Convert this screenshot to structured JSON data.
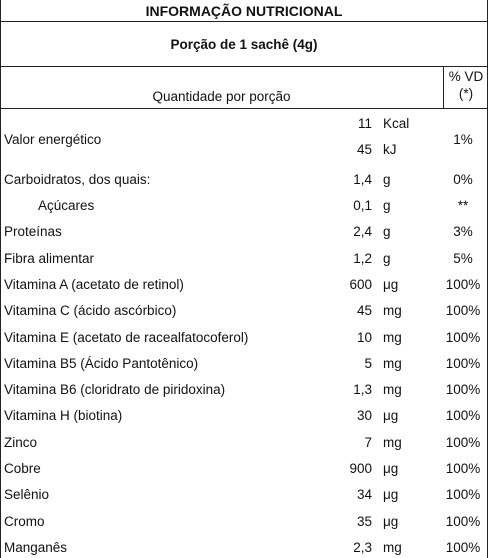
{
  "header": {
    "title": "INFORMAÇÃO NUTRICIONAL",
    "serving": "Porção de 1 sachê (4g)",
    "quantity_label": "Quantidade por porção",
    "vd_label": [
      "% VD",
      "(*)"
    ]
  },
  "rows": [
    {
      "name": "Valor energético",
      "amounts": [
        {
          "amount": "11",
          "unit": "Kcal"
        },
        {
          "amount": "45",
          "unit": "kJ"
        }
      ],
      "vd": "1%"
    },
    {
      "name": "Carboidratos, dos quais:",
      "amounts": [
        {
          "amount": "1,4",
          "unit": "g"
        }
      ],
      "vd": "0%"
    },
    {
      "name": "Açúcares",
      "indent": true,
      "amounts": [
        {
          "amount": "0,1",
          "unit": "g"
        }
      ],
      "vd": "**"
    },
    {
      "name": "Proteínas",
      "amounts": [
        {
          "amount": "2,4",
          "unit": "g"
        }
      ],
      "vd": "3%"
    },
    {
      "name": "Fibra alimentar",
      "amounts": [
        {
          "amount": "1,2",
          "unit": "g"
        }
      ],
      "vd": "5%"
    },
    {
      "name": "Vitamina A (acetato de retinol)",
      "amounts": [
        {
          "amount": "600",
          "unit": "μg"
        }
      ],
      "vd": "100%"
    },
    {
      "name": "Vitamina C (ácido ascórbico)",
      "amounts": [
        {
          "amount": "45",
          "unit": "mg"
        }
      ],
      "vd": "100%"
    },
    {
      "name": "Vitamina E (acetato de racealfatocoferol)",
      "amounts": [
        {
          "amount": "10",
          "unit": "mg"
        }
      ],
      "vd": "100%"
    },
    {
      "name": "Vitamina B5 (Ácido Pantotênico)",
      "amounts": [
        {
          "amount": "5",
          "unit": "mg"
        }
      ],
      "vd": "100%"
    },
    {
      "name": "Vitamina B6 (cloridrato de piridoxina)",
      "amounts": [
        {
          "amount": "1,3",
          "unit": "mg"
        }
      ],
      "vd": "100%"
    },
    {
      "name": "Vitamina H (biotina)",
      "amounts": [
        {
          "amount": "30",
          "unit": "μg"
        }
      ],
      "vd": "100%"
    },
    {
      "name": "Zinco",
      "amounts": [
        {
          "amount": "7",
          "unit": "mg"
        }
      ],
      "vd": "100%"
    },
    {
      "name": "Cobre",
      "amounts": [
        {
          "amount": "900",
          "unit": "μg"
        }
      ],
      "vd": "100%"
    },
    {
      "name": "Selênio",
      "amounts": [
        {
          "amount": "34",
          "unit": "μg"
        }
      ],
      "vd": "100%"
    },
    {
      "name": "Cromo",
      "amounts": [
        {
          "amount": "35",
          "unit": "μg"
        }
      ],
      "vd": "100%"
    },
    {
      "name": "Manganês",
      "amounts": [
        {
          "amount": "2,3",
          "unit": "mg"
        }
      ],
      "vd": "100%"
    }
  ]
}
